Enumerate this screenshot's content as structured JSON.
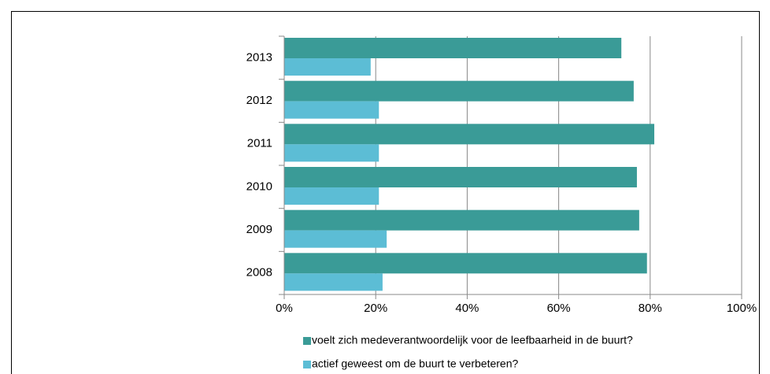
{
  "chart_data": {
    "type": "hbar",
    "categories": [
      "2008",
      "2009",
      "2010",
      "2011",
      "2012",
      "2013"
    ],
    "series": [
      {
        "name": "voelt zich medeverantwoordelijk voor de leefbaarheid in de buurt?",
        "color": "#3a9b97",
        "values": [
          79.3,
          77.6,
          77.1,
          80.9,
          76.4,
          73.7
        ]
      },
      {
        "name": "actief geweest om de buurt te verbeteren?",
        "color": "#5cbdd5",
        "values": [
          21.5,
          22.4,
          20.7,
          20.7,
          20.7,
          18.9
        ]
      }
    ],
    "xlim": [
      0,
      100
    ],
    "xticks": [
      {
        "value": 0,
        "label": "0%"
      },
      {
        "value": 20,
        "label": "20%"
      },
      {
        "value": 40,
        "label": "40%"
      },
      {
        "value": 60,
        "label": "60%"
      },
      {
        "value": 80,
        "label": "80%"
      },
      {
        "value": 100,
        "label": "100%"
      }
    ],
    "grid": true
  }
}
